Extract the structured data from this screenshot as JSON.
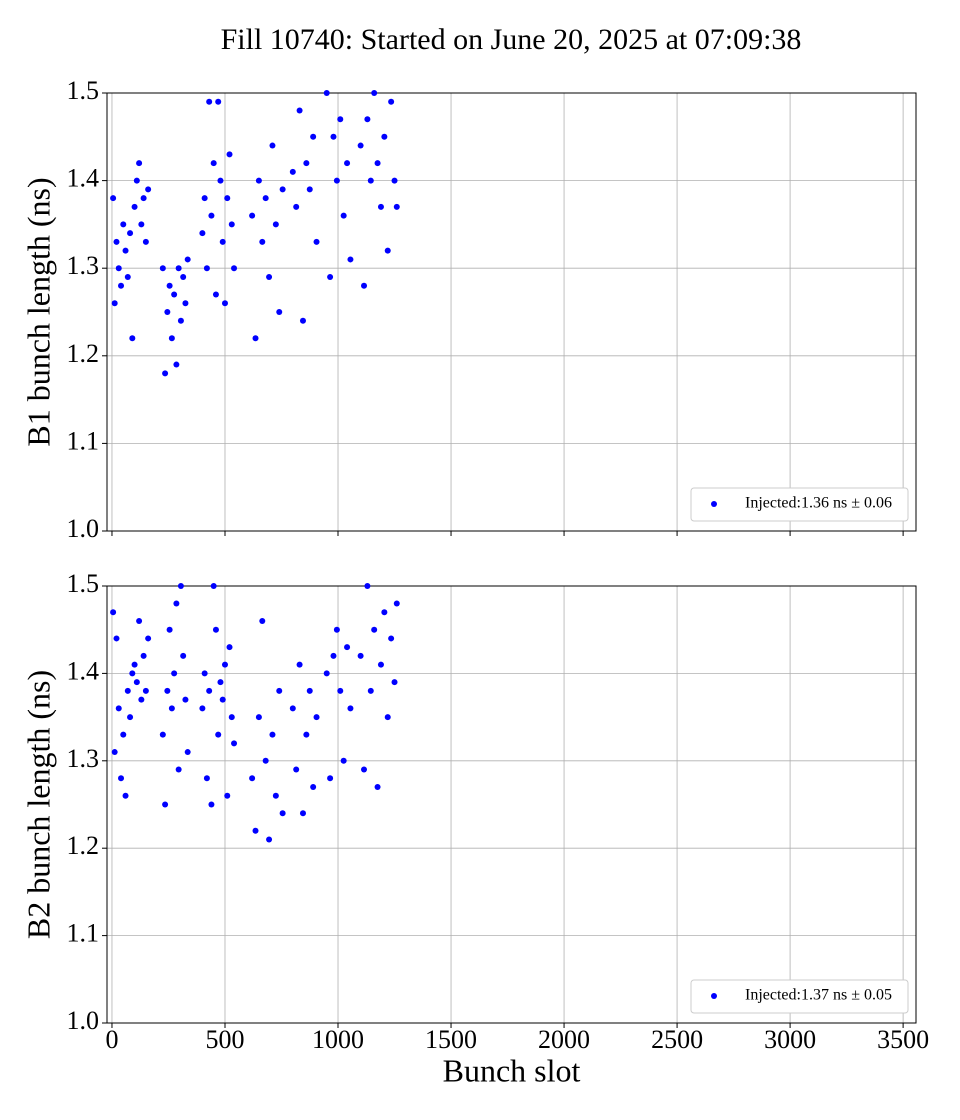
{
  "chart_data": [
    {
      "type": "scatter",
      "title": "Fill 10740: Started on June 20, 2025 at 07:09:38",
      "ylabel": "B1 bunch length (ns)",
      "xlim": [
        -22,
        3557
      ],
      "ylim": [
        1.0,
        1.5
      ],
      "xticks": [
        0,
        500,
        1000,
        1500,
        2000,
        2500,
        3000,
        3500
      ],
      "yticks": [
        1.0,
        1.1,
        1.2,
        1.3,
        1.4,
        1.5
      ],
      "grid": true,
      "legend": "lower right",
      "series": [
        {
          "name": "Injected:1.36 ns ± 0.06",
          "color": "#0000ff",
          "x": [
            5,
            12,
            20,
            30,
            40,
            50,
            60,
            70,
            80,
            90,
            100,
            110,
            120,
            130,
            140,
            150,
            160,
            225,
            235,
            245,
            255,
            265,
            275,
            285,
            295,
            305,
            315,
            325,
            335,
            400,
            410,
            420,
            430,
            440,
            450,
            460,
            470,
            480,
            490,
            500,
            510,
            520,
            530,
            540,
            620,
            635,
            650,
            665,
            680,
            695,
            710,
            725,
            740,
            755,
            800,
            815,
            830,
            845,
            860,
            875,
            890,
            905,
            950,
            965,
            980,
            995,
            1010,
            1025,
            1040,
            1055,
            1100,
            1115,
            1130,
            1145,
            1160,
            1175,
            1190,
            1205,
            1220,
            1235,
            1250,
            1260
          ],
          "values": [
            1.38,
            1.26,
            1.33,
            1.3,
            1.28,
            1.35,
            1.32,
            1.29,
            1.34,
            1.22,
            1.37,
            1.4,
            1.42,
            1.35,
            1.38,
            1.33,
            1.39,
            1.3,
            1.18,
            1.25,
            1.28,
            1.22,
            1.27,
            1.19,
            1.3,
            1.24,
            1.29,
            1.26,
            1.31,
            1.34,
            1.38,
            1.3,
            1.49,
            1.36,
            1.42,
            1.27,
            1.49,
            1.4,
            1.33,
            1.26,
            1.38,
            1.43,
            1.35,
            1.3,
            1.36,
            1.22,
            1.4,
            1.33,
            1.38,
            1.29,
            1.44,
            1.35,
            1.25,
            1.39,
            1.41,
            1.37,
            1.48,
            1.24,
            1.42,
            1.39,
            1.45,
            1.33,
            1.5,
            1.29,
            1.45,
            1.4,
            1.47,
            1.36,
            1.42,
            1.31,
            1.44,
            1.28,
            1.47,
            1.4,
            1.5,
            1.42,
            1.37,
            1.45,
            1.32,
            1.49,
            1.4,
            1.37
          ]
        }
      ]
    },
    {
      "type": "scatter",
      "xlabel": "Bunch slot",
      "ylabel": "B2 bunch length (ns)",
      "xlim": [
        -22,
        3557
      ],
      "ylim": [
        1.0,
        1.5
      ],
      "xticks": [
        0,
        500,
        1000,
        1500,
        2000,
        2500,
        3000,
        3500
      ],
      "yticks": [
        1.0,
        1.1,
        1.2,
        1.3,
        1.4,
        1.5
      ],
      "grid": true,
      "legend": "lower right",
      "series": [
        {
          "name": "Injected:1.37 ns ± 0.05",
          "color": "#0000ff",
          "x": [
            5,
            12,
            20,
            30,
            40,
            50,
            60,
            70,
            80,
            90,
            100,
            110,
            120,
            130,
            140,
            150,
            160,
            225,
            235,
            245,
            255,
            265,
            275,
            285,
            295,
            305,
            315,
            325,
            335,
            400,
            410,
            420,
            430,
            440,
            450,
            460,
            470,
            480,
            490,
            500,
            510,
            520,
            530,
            540,
            620,
            635,
            650,
            665,
            680,
            695,
            710,
            725,
            740,
            755,
            800,
            815,
            830,
            845,
            860,
            875,
            890,
            905,
            950,
            965,
            980,
            995,
            1010,
            1025,
            1040,
            1055,
            1100,
            1115,
            1130,
            1145,
            1160,
            1175,
            1190,
            1205,
            1220,
            1235,
            1250,
            1260
          ],
          "values": [
            1.47,
            1.31,
            1.44,
            1.36,
            1.28,
            1.33,
            1.26,
            1.38,
            1.35,
            1.4,
            1.41,
            1.39,
            1.46,
            1.37,
            1.42,
            1.38,
            1.44,
            1.33,
            1.25,
            1.38,
            1.45,
            1.36,
            1.4,
            1.48,
            1.29,
            1.5,
            1.42,
            1.37,
            1.31,
            1.36,
            1.4,
            1.28,
            1.38,
            1.25,
            1.5,
            1.45,
            1.33,
            1.39,
            1.37,
            1.41,
            1.26,
            1.43,
            1.35,
            1.32,
            1.28,
            1.22,
            1.35,
            1.46,
            1.3,
            1.21,
            1.33,
            1.26,
            1.38,
            1.24,
            1.36,
            1.29,
            1.41,
            1.24,
            1.33,
            1.38,
            1.27,
            1.35,
            1.4,
            1.28,
            1.42,
            1.45,
            1.38,
            1.3,
            1.43,
            1.36,
            1.42,
            1.29,
            1.5,
            1.38,
            1.45,
            1.27,
            1.41,
            1.47,
            1.35,
            1.44,
            1.39,
            1.48
          ]
        }
      ]
    }
  ]
}
